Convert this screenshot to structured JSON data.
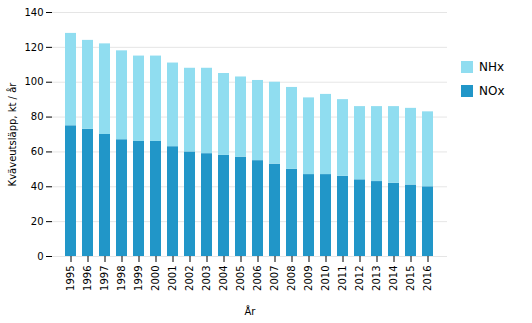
{
  "chart_data": {
    "type": "bar",
    "stacked": true,
    "xlabel": "År",
    "ylabel": "Kväveutsläpp, kt / år",
    "categories": [
      1995,
      1996,
      1997,
      1998,
      1999,
      2000,
      2001,
      2002,
      2003,
      2004,
      2005,
      2006,
      2007,
      2008,
      2009,
      2010,
      2011,
      2012,
      2013,
      2014,
      2015,
      2016
    ],
    "series": [
      {
        "name": "NOx",
        "color": "#2196c8",
        "values": [
          75,
          73,
          70,
          67,
          66,
          66,
          63,
          60,
          59,
          58,
          57,
          55,
          53,
          50,
          47,
          47,
          46,
          44,
          43,
          42,
          41,
          40
        ]
      },
      {
        "name": "NHx",
        "color": "#90ddf0",
        "values": [
          53,
          51,
          52,
          51,
          49,
          49,
          48,
          48,
          49,
          47,
          46,
          46,
          47,
          47,
          44,
          46,
          44,
          42,
          43,
          44,
          44,
          43
        ]
      }
    ],
    "ylim": [
      0,
      140
    ],
    "yticks": [
      0,
      20,
      40,
      60,
      80,
      100,
      120,
      140
    ],
    "grid": true,
    "legend": "right"
  }
}
